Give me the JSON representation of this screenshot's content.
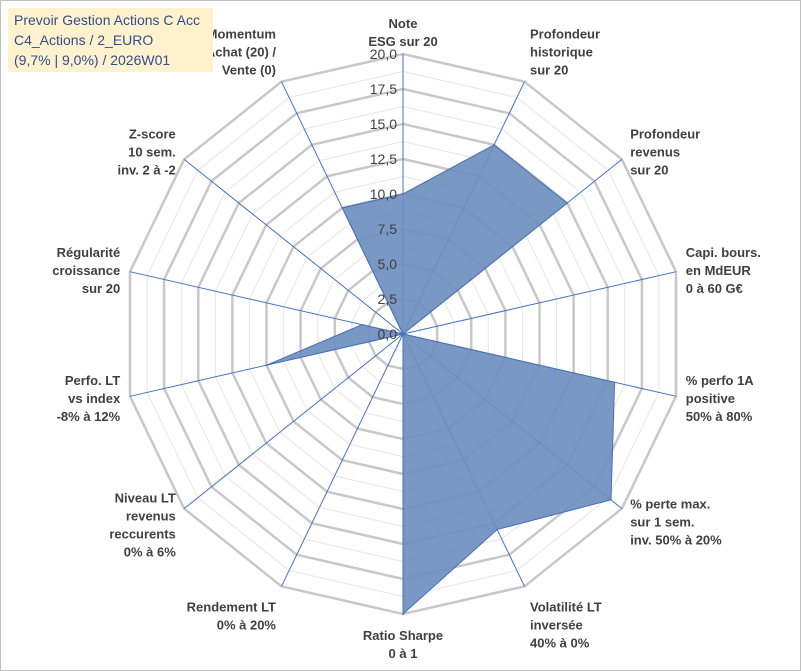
{
  "title": {
    "line1": "Prevoir Gestion Actions C Acc",
    "line2": "C4_Actions / 2_EURO",
    "line3": "(9,7% | 9,0%) / 2026W01"
  },
  "colors": {
    "fill": "#6e8fbf",
    "stroke": "#4a6fb5",
    "grid": "#c8c8c8",
    "minor_grid": "#e6e6e6",
    "spoke": "#4472c4",
    "title_bg": "#fff2cc",
    "title_text": "#2e4e8f"
  },
  "chart_data": {
    "type": "radar",
    "title": "Prevoir Gestion Actions C Acc",
    "rmin": 0,
    "rmax": 20,
    "ticks": [
      "0,0",
      "2,5",
      "5,0",
      "7,5",
      "10,0",
      "12,5",
      "15,0",
      "17,5",
      "20,0"
    ],
    "tick_values": [
      0,
      2.5,
      5,
      7.5,
      10,
      12.5,
      15,
      17.5,
      20
    ],
    "axes": [
      {
        "label": [
          "Note",
          "ESG sur 20"
        ],
        "value": 10
      },
      {
        "label": [
          "Profondeur",
          "historique",
          "sur 20"
        ],
        "value": 15
      },
      {
        "label": [
          "Profondeur",
          "revenus",
          "sur 20"
        ],
        "value": 15
      },
      {
        "label": [
          "Capi. bours.",
          "en MdEUR",
          "0 à 60 G€"
        ],
        "value": 0
      },
      {
        "label": [
          "% perfo 1A",
          "positive",
          "50% à 80%"
        ],
        "value": 15.5
      },
      {
        "label": [
          "% perte max.",
          "sur 1 sem.",
          "inv. 50% à 20%"
        ],
        "value": 19
      },
      {
        "label": [
          "Volatilité LT",
          "inversée",
          "40% à 0%"
        ],
        "value": 15.5
      },
      {
        "label": [
          "Ratio Sharpe",
          "0 à 1"
        ],
        "value": 20
      },
      {
        "label": [
          "Rendement LT",
          "0% à 20%"
        ],
        "value": 0
      },
      {
        "label": [
          "Niveau LT",
          "revenus",
          "reccurents",
          "0% à 6%"
        ],
        "value": 0
      },
      {
        "label": [
          "Perfo. LT",
          "vs index",
          "-8% à 12%"
        ],
        "value": 10
      },
      {
        "label": [
          "Régularité",
          "croissance",
          "sur 20"
        ],
        "value": 3
      },
      {
        "label": [
          "Z-score",
          "10 sem.",
          "inv. 2 à -2"
        ],
        "value": 0
      },
      {
        "label": [
          "Momentum",
          "Achat (20) /",
          "Vente (0)"
        ],
        "value": 10
      }
    ],
    "series": [
      {
        "name": "Prevoir Gestion Actions C Acc",
        "values": [
          10,
          15,
          15,
          0,
          15.5,
          19,
          15.5,
          20,
          0,
          0,
          10,
          3,
          0,
          10
        ]
      }
    ]
  }
}
